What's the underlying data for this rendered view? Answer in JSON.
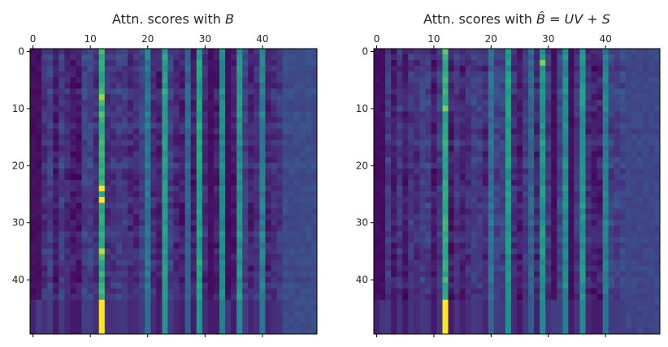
{
  "figure": {
    "colormap": "viridis",
    "colors": {
      "text": "#262626",
      "axis": "#000000"
    }
  },
  "chart_data": [
    {
      "type": "heatmap",
      "title_prefix": "Attn. scores with ",
      "title_math": "B",
      "title": "Attn. scores with B",
      "x_ticks": [
        0,
        10,
        20,
        30,
        40
      ],
      "y_ticks": [
        0,
        10,
        20,
        30,
        40
      ],
      "x_range": [
        0,
        49
      ],
      "y_range": [
        0,
        49
      ],
      "x_axis_position": "top",
      "grid": false,
      "n_rows": 50,
      "n_cols": 50,
      "bright_columns": [
        {
          "col": 12,
          "level": 0.62
        },
        {
          "col": 23,
          "level": 0.55
        },
        {
          "col": 29,
          "level": 0.55
        },
        {
          "col": 33,
          "level": 0.45
        },
        {
          "col": 36,
          "level": 0.5
        },
        {
          "col": 40,
          "level": 0.42
        },
        {
          "col": 20,
          "level": 0.38
        },
        {
          "col": 27,
          "level": 0.3
        }
      ],
      "hotspots": [
        {
          "row": 24,
          "col": 12,
          "level": 1.0
        },
        {
          "row": 26,
          "col": 12,
          "level": 1.0
        },
        {
          "row": 35,
          "col": 12,
          "level": 0.9
        },
        {
          "row": 8,
          "col": 12,
          "level": 0.85
        }
      ],
      "bottom_band": {
        "from_row": 44,
        "hot_col": 12,
        "level": 1.0
      },
      "right_band": {
        "from_col": 44,
        "level": 0.22
      }
    },
    {
      "type": "heatmap",
      "title_prefix": "Attn. scores with ",
      "title_math": "B̂ = UV + S",
      "title": "Attn. scores with B̂ = UV + S",
      "x_ticks": [
        0,
        10,
        20,
        30,
        40
      ],
      "y_ticks": [
        0,
        10,
        20,
        30,
        40
      ],
      "x_range": [
        0,
        49
      ],
      "y_range": [
        0,
        49
      ],
      "x_axis_position": "top",
      "grid": false,
      "n_rows": 50,
      "n_cols": 50,
      "bright_columns": [
        {
          "col": 12,
          "level": 0.6
        },
        {
          "col": 23,
          "level": 0.52
        },
        {
          "col": 29,
          "level": 0.5
        },
        {
          "col": 33,
          "level": 0.45
        },
        {
          "col": 36,
          "level": 0.5
        },
        {
          "col": 40,
          "level": 0.4
        },
        {
          "col": 20,
          "level": 0.35
        },
        {
          "col": 27,
          "level": 0.3
        }
      ],
      "hotspots": [
        {
          "row": 2,
          "col": 29,
          "level": 0.8
        },
        {
          "row": 10,
          "col": 12,
          "level": 0.8
        },
        {
          "row": 0,
          "col": 12,
          "level": 0.75
        }
      ],
      "bottom_band": {
        "from_row": 44,
        "hot_col": 12,
        "level": 1.0
      },
      "right_band": {
        "from_col": 44,
        "level": 0.2
      }
    }
  ]
}
